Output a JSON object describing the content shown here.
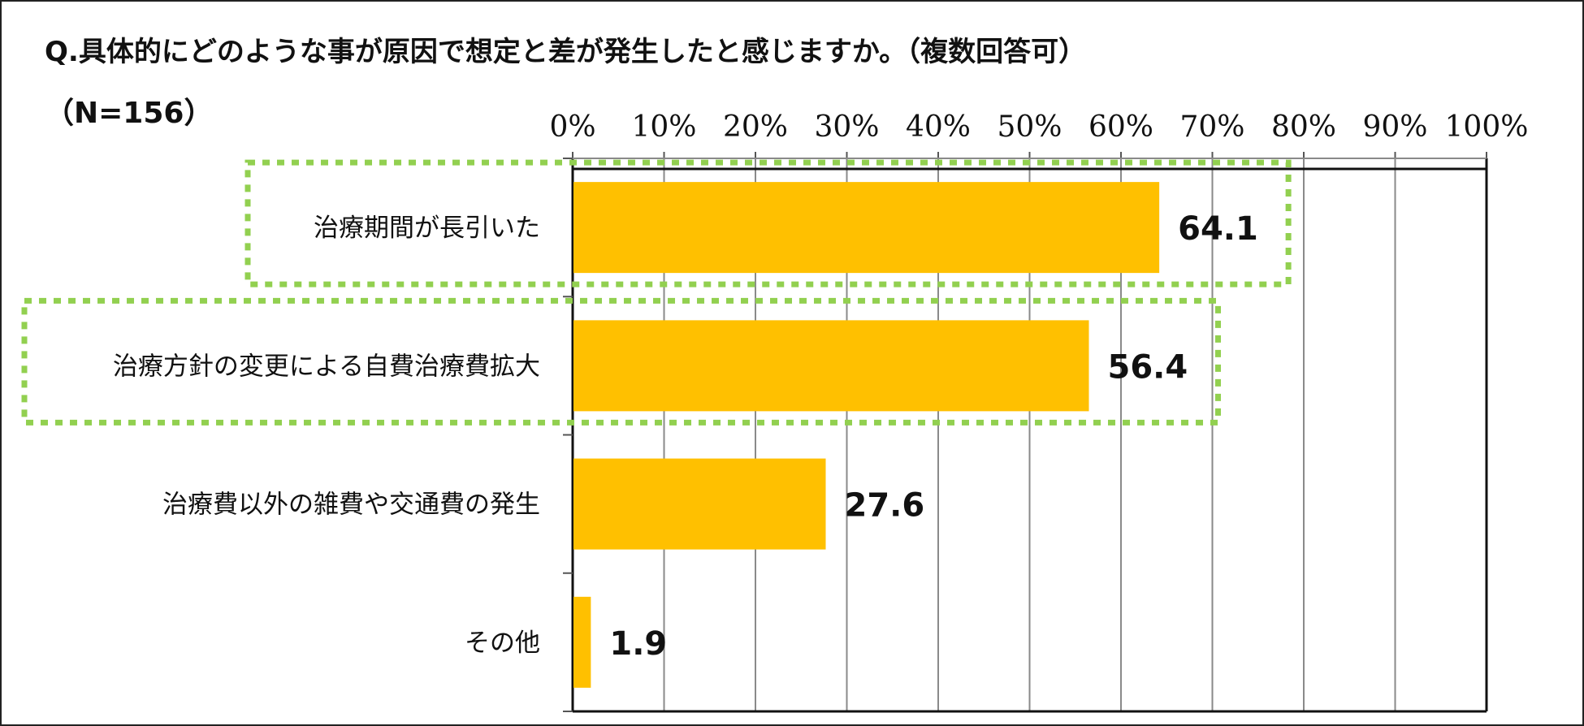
{
  "title": "Q.具体的にどのような事が原因で想定と差が発生したと感じますか。（複数回答可）",
  "subtitle": "（N=156）",
  "chart_data": {
    "type": "bar",
    "orientation": "horizontal",
    "categories": [
      "治療期間が長引いた",
      "治療方針の変更による自費治療費拡大",
      "治療費以外の雑費や交通費の発生",
      "その他"
    ],
    "values": [
      64.1,
      56.4,
      27.6,
      1.9
    ],
    "value_labels": [
      "64.1",
      "56.4",
      "27.6",
      "1.9"
    ],
    "xlim": [
      0,
      100
    ],
    "x_ticks": [
      0,
      10,
      20,
      30,
      40,
      50,
      60,
      70,
      80,
      90,
      100
    ],
    "x_tick_labels": [
      "0%",
      "10%",
      "20%",
      "30%",
      "40%",
      "50%",
      "60%",
      "70%",
      "80%",
      "90%",
      "100%"
    ],
    "axis_position": "top",
    "grid": true,
    "highlighted_categories": [
      0,
      1
    ],
    "bar_color": "#FFC000",
    "highlight_color": "#92D050"
  }
}
